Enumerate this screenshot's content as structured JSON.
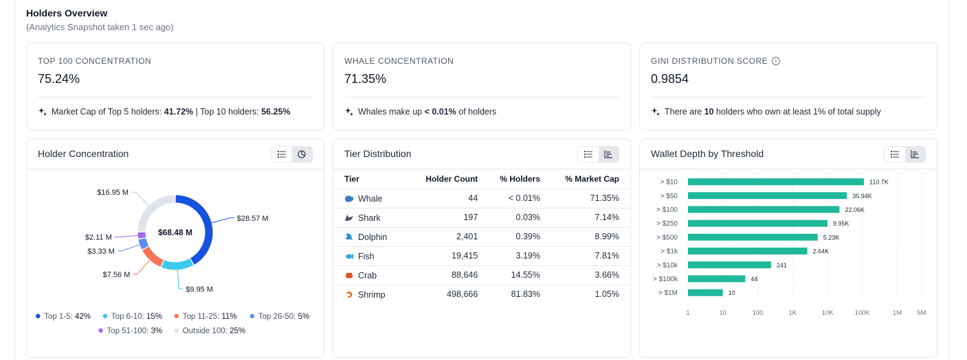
{
  "header": {
    "title": "Holders Overview",
    "subtitle": "(Analytics Snapshot taken 1 sec ago)"
  },
  "stats": [
    {
      "label": "TOP 100 CONCENTRATION",
      "value": "75.24%",
      "note": {
        "p1": "Market Cap of Top 5 holders: ",
        "b1": "41.72%",
        "p2": " | Top 10 holders: ",
        "b2": "56.25%",
        "p3": ""
      }
    },
    {
      "label": "WHALE CONCENTRATION",
      "value": "71.35%",
      "note": {
        "p1": "Whales make up ",
        "b1": "< 0.01%",
        "p2": " of holders",
        "b2": "",
        "p3": ""
      }
    },
    {
      "label": "GINI DISTRIBUTION SCORE",
      "value": "0.9854",
      "note": {
        "p1": "There are ",
        "b1": "10",
        "p2": " holders who own at least 1% of total supply",
        "b2": "",
        "p3": ""
      }
    }
  ],
  "panels": {
    "concentration": {
      "title": "Holder Concentration"
    },
    "tiers": {
      "title": "Tier Distribution"
    },
    "depth": {
      "title": "Wallet Depth by Threshold"
    }
  },
  "donut": {
    "center_label": "$68.48 M",
    "segments": [
      {
        "name": "Top 1-5",
        "value": 28.57,
        "label": "$28.57 M",
        "color": "#1652e0"
      },
      {
        "name": "Top 6-10",
        "value": 9.95,
        "label": "$9.95 M",
        "color": "#3ec7ef"
      },
      {
        "name": "Top 11-25",
        "value": 7.56,
        "label": "$7.56 M",
        "color": "#f87458"
      },
      {
        "name": "Top 26-50",
        "value": 3.33,
        "label": "$3.33 M",
        "color": "#5c8def"
      },
      {
        "name": "Top 51-100",
        "value": 2.11,
        "label": "$2.11 M",
        "color": "#a667f5"
      },
      {
        "name": "Outside 100",
        "value": 16.95,
        "label": "$16.95 M",
        "color": "#dfe3ea"
      }
    ],
    "legend": [
      {
        "name": "Top 1-5:",
        "pct": "42%",
        "color": "#1652e0"
      },
      {
        "name": "Top 6-10:",
        "pct": "15%",
        "color": "#3ec7ef"
      },
      {
        "name": "Top 11-25:",
        "pct": "11%",
        "color": "#f87458"
      },
      {
        "name": "Top 26-50:",
        "pct": "5%",
        "color": "#5c8def"
      },
      {
        "name": "Top 51-100:",
        "pct": "3%",
        "color": "#a667f5"
      },
      {
        "name": "Outside 100:",
        "pct": "25%",
        "color": "#dfe3ea"
      }
    ]
  },
  "tier_table": {
    "columns": [
      "Tier",
      "Holder Count",
      "% Holders",
      "% Market Cap"
    ],
    "rows": [
      {
        "tier": "Whale",
        "icon": "whale-icon",
        "color": "#3b82c4",
        "count": "44",
        "holders": "< 0.01%",
        "cap": "71.35%"
      },
      {
        "tier": "Shark",
        "icon": "shark-icon",
        "color": "#4b5563",
        "count": "197",
        "holders": "0.03%",
        "cap": "7.14%"
      },
      {
        "tier": "Dolphin",
        "icon": "dolphin-icon",
        "color": "#2b8fd6",
        "count": "2,401",
        "holders": "0.39%",
        "cap": "8.99%"
      },
      {
        "tier": "Fish",
        "icon": "fish-icon",
        "color": "#3fa9e0",
        "count": "19,415",
        "holders": "3.19%",
        "cap": "7.81%"
      },
      {
        "tier": "Crab",
        "icon": "crab-icon",
        "color": "#d9541e",
        "count": "88,646",
        "holders": "14.55%",
        "cap": "3.66%"
      },
      {
        "tier": "Shrimp",
        "icon": "shrimp-icon",
        "color": "#e0662a",
        "count": "498,666",
        "holders": "81.83%",
        "cap": "1.05%"
      }
    ]
  },
  "chart_data": {
    "type": "bar",
    "orientation": "horizontal",
    "scale": "log",
    "categories": [
      "> $10",
      "> $50",
      "> $100",
      "> $250",
      "> $500",
      "> $1k",
      "> $10k",
      "> $100k",
      "> $1M"
    ],
    "values": [
      110700,
      35940,
      22060,
      9950,
      5230,
      2640,
      241,
      44,
      10
    ],
    "data_labels": [
      "110.7K",
      "35.94K",
      "22.06K",
      "9.95K",
      "5.23K",
      "2.64K",
      "241",
      "44",
      "10"
    ],
    "x_ticks": [
      {
        "v": 1,
        "label": "1"
      },
      {
        "v": 10,
        "label": "10"
      },
      {
        "v": 100,
        "label": "100"
      },
      {
        "v": 1000,
        "label": "1K"
      },
      {
        "v": 10000,
        "label": "10K"
      },
      {
        "v": 100000,
        "label": "100K"
      },
      {
        "v": 1000000,
        "label": "1M"
      },
      {
        "v": 5000000,
        "label": "5M"
      }
    ],
    "xlim": [
      1,
      5000000
    ],
    "bar_color": "#1fb89a",
    "grid": "vertical-dashed"
  }
}
